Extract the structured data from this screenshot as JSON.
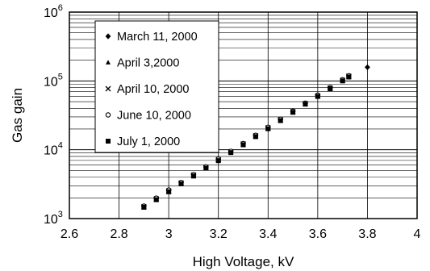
{
  "chart_data": {
    "type": "scatter",
    "title": "",
    "xlabel": "High Voltage, kV",
    "ylabel": "Gas gain",
    "xlim": [
      2.6,
      4.0
    ],
    "ylim": [
      1000,
      1000000
    ],
    "y_scale": "log",
    "grid": true,
    "legend_position": "top-left",
    "x_ticks": [
      2.6,
      2.8,
      3.0,
      3.2,
      3.4,
      3.6,
      3.8,
      4.0
    ],
    "x_tick_labels": [
      "2.6",
      "2.8",
      "3",
      "3.2",
      "3.4",
      "3.6",
      "3.8",
      "4"
    ],
    "y_ticks": [
      {
        "value": 1000,
        "base": "10",
        "exp": "3"
      },
      {
        "value": 10000,
        "base": "10",
        "exp": "4"
      },
      {
        "value": 100000,
        "base": "10",
        "exp": "5"
      },
      {
        "value": 1000000,
        "base": "10",
        "exp": "6"
      }
    ],
    "series": [
      {
        "name": "March 11, 2000",
        "marker": "diamond",
        "x": [
          2.9,
          2.95,
          3.0,
          3.05,
          3.1,
          3.15,
          3.2,
          3.25,
          3.3,
          3.35,
          3.4,
          3.45,
          3.5,
          3.55,
          3.6,
          3.65,
          3.7,
          3.8
        ],
        "y": [
          1500,
          1950,
          2550,
          3300,
          4300,
          5600,
          7200,
          9400,
          12200,
          16000,
          21000,
          27500,
          36000,
          47000,
          61000,
          79000,
          103000,
          158000
        ]
      },
      {
        "name": "April 3,2000",
        "marker": "triangle",
        "x": [
          2.9,
          2.95,
          3.0,
          3.05,
          3.1,
          3.15,
          3.2,
          3.25,
          3.3,
          3.35,
          3.4,
          3.45,
          3.5,
          3.55,
          3.6,
          3.65,
          3.7,
          3.725
        ],
        "y": [
          1450,
          1900,
          2500,
          3250,
          4250,
          5500,
          7100,
          9300,
          12000,
          15800,
          20500,
          27000,
          35500,
          46500,
          60000,
          78000,
          101000,
          116000
        ]
      },
      {
        "name": "April 10, 2000",
        "marker": "cross",
        "x": [
          2.9,
          2.95,
          3.0,
          3.05,
          3.1,
          3.15,
          3.2,
          3.25,
          3.3,
          3.35,
          3.4,
          3.45,
          3.5,
          3.55,
          3.6,
          3.65,
          3.7,
          3.725
        ],
        "y": [
          1480,
          1930,
          2520,
          3280,
          4280,
          5550,
          7150,
          9350,
          12100,
          15900,
          20800,
          27200,
          35800,
          46800,
          60500,
          78500,
          102000,
          117000
        ]
      },
      {
        "name": "June 10, 2000",
        "marker": "circle",
        "x": [
          2.9,
          2.95,
          3.0,
          3.05,
          3.1,
          3.15,
          3.2,
          3.25,
          3.3,
          3.35,
          3.4,
          3.45,
          3.5,
          3.55,
          3.6,
          3.65,
          3.7,
          3.725
        ],
        "y": [
          1520,
          1980,
          2600,
          3350,
          4350,
          5650,
          7300,
          9500,
          12300,
          16200,
          21200,
          27800,
          36300,
          47500,
          62000,
          80000,
          104000,
          119000
        ]
      },
      {
        "name": "July 1, 2000",
        "marker": "square",
        "x": [
          2.9,
          2.95,
          3.0,
          3.05,
          3.1,
          3.15,
          3.2,
          3.25,
          3.3,
          3.35,
          3.4,
          3.45,
          3.5,
          3.55,
          3.6,
          3.65,
          3.7,
          3.725
        ],
        "y": [
          1460,
          1880,
          2450,
          3200,
          4150,
          5400,
          6950,
          9100,
          11800,
          15500,
          20200,
          26500,
          35000,
          46000,
          59500,
          77000,
          100000,
          114000
        ]
      }
    ]
  }
}
